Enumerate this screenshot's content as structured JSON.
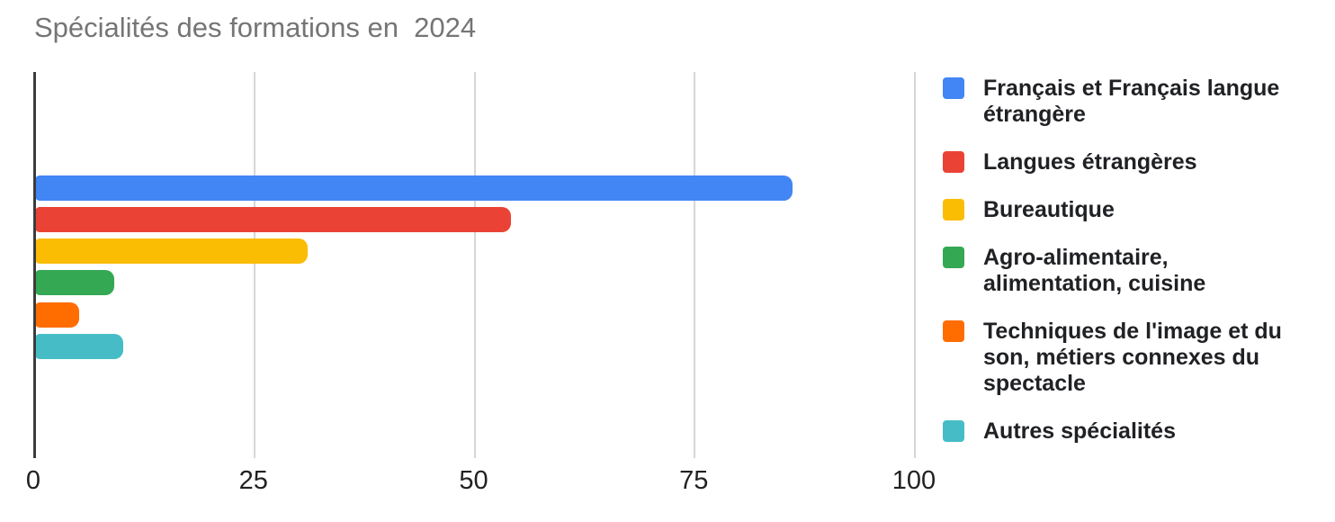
{
  "title": "Spécialités des formations en  2024",
  "chart_data": {
    "type": "bar",
    "orientation": "horizontal",
    "title": "Spécialités des formations en  2024",
    "xlabel": "",
    "ylabel": "",
    "xlim": [
      0,
      108
    ],
    "x_ticks": [
      0,
      25,
      50,
      75,
      100
    ],
    "grid": true,
    "legend_position": "right",
    "series": [
      {
        "name": "Français et Français langue étrangère",
        "label_lines": [
          "Français et Français langue",
          "étrangère"
        ],
        "value": 86,
        "color": "#4285F4"
      },
      {
        "name": "Langues étrangères",
        "label_lines": [
          "Langues étrangères"
        ],
        "value": 54,
        "color": "#EA4335"
      },
      {
        "name": "Bureautique",
        "label_lines": [
          "Bureautique"
        ],
        "value": 31,
        "color": "#FBBC04"
      },
      {
        "name": "Agro-alimentaire, alimentation, cuisine",
        "label_lines": [
          "Agro-alimentaire,",
          "alimentation, cuisine"
        ],
        "value": 9,
        "color": "#34A853"
      },
      {
        "name": "Techniques de l'image et du son, métiers connexes du spectacle",
        "label_lines": [
          "Techniques de l'image et du",
          "son, métiers connexes du",
          "spectacle"
        ],
        "value": 5,
        "color": "#FF6D01"
      },
      {
        "name": "Autres spécialités",
        "label_lines": [
          "Autres spécialités"
        ],
        "value": 10,
        "color": "#46BDC6"
      }
    ],
    "colors": {
      "title_text": "#757575",
      "tick_text": "#212121",
      "legend_text": "#202124",
      "gridline": "#d6d6d6",
      "axis_line": "#3c3c3c",
      "background": "#ffffff"
    }
  }
}
